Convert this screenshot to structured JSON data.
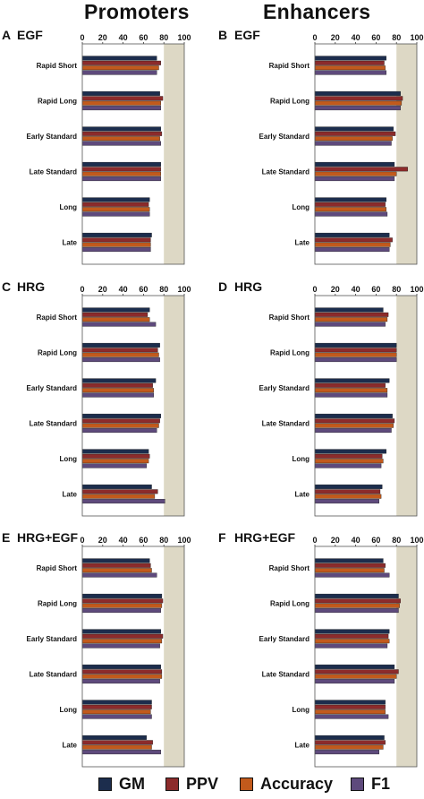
{
  "columns": [
    {
      "title": "Promoters"
    },
    {
      "title": "Enhancers"
    }
  ],
  "colors": {
    "GM": "#1c2d4d",
    "PPV": "#8c2b2b",
    "Accuracy": "#c25a1c",
    "F1": "#5e4a7c",
    "plot_bg_shaded": "#ddd8c5",
    "plot_bg": "#ffffff"
  },
  "legend": [
    {
      "name": "GM"
    },
    {
      "name": "PPV"
    },
    {
      "name": "Accuracy"
    },
    {
      "name": "F1"
    }
  ],
  "chart_data": [
    {
      "panel": "A",
      "title": "EGF",
      "column": "Promoters",
      "type": "bar",
      "orientation": "horizontal",
      "xticks": [
        "0",
        "20",
        "40",
        "60",
        "80",
        "100"
      ],
      "xlim": [
        0,
        100
      ],
      "shaded_range": [
        80,
        100
      ],
      "categories": [
        "Rapid Short",
        "Rapid Long",
        "Early Standard",
        "Late Standard",
        "Long",
        "Late"
      ],
      "series": [
        {
          "name": "GM",
          "values": [
            73,
            76,
            77,
            77,
            66,
            68
          ]
        },
        {
          "name": "PPV",
          "values": [
            77,
            79,
            78,
            77,
            65,
            67
          ]
        },
        {
          "name": "Accuracy",
          "values": [
            75,
            77,
            76,
            77,
            66,
            67
          ]
        },
        {
          "name": "F1",
          "values": [
            73,
            77,
            77,
            77,
            66,
            67
          ]
        }
      ]
    },
    {
      "panel": "B",
      "title": "EGF",
      "column": "Enhancers",
      "type": "bar",
      "orientation": "horizontal",
      "xticks": [
        "0",
        "20",
        "40",
        "60",
        "80",
        "100"
      ],
      "xlim": [
        0,
        100
      ],
      "shaded_range": [
        80,
        100
      ],
      "categories": [
        "Rapid Short",
        "Rapid Long",
        "Early Standard",
        "Late Standard",
        "Long",
        "Late"
      ],
      "series": [
        {
          "name": "GM",
          "values": [
            70,
            84,
            77,
            78,
            70,
            73
          ]
        },
        {
          "name": "PPV",
          "values": [
            68,
            86,
            79,
            91,
            69,
            76
          ]
        },
        {
          "name": "Accuracy",
          "values": [
            69,
            85,
            76,
            80,
            70,
            74
          ]
        },
        {
          "name": "F1",
          "values": [
            70,
            84,
            75,
            78,
            71,
            73
          ]
        }
      ]
    },
    {
      "panel": "C",
      "title": "HRG",
      "column": "Promoters",
      "type": "bar",
      "orientation": "horizontal",
      "xticks": [
        "0",
        "20",
        "40",
        "60",
        "80",
        "100"
      ],
      "xlim": [
        0,
        100
      ],
      "shaded_range": [
        80,
        100
      ],
      "categories": [
        "Rapid Short",
        "Rapid Long",
        "Early Standard",
        "Late Standard",
        "Long",
        "Late"
      ],
      "series": [
        {
          "name": "GM",
          "values": [
            66,
            76,
            72,
            77,
            65,
            68
          ]
        },
        {
          "name": "PPV",
          "values": [
            64,
            74,
            69,
            76,
            66,
            74
          ]
        },
        {
          "name": "Accuracy",
          "values": [
            66,
            75,
            70,
            75,
            65,
            71
          ]
        },
        {
          "name": "F1",
          "values": [
            72,
            76,
            70,
            73,
            63,
            81
          ]
        }
      ]
    },
    {
      "panel": "D",
      "title": "HRG",
      "column": "Enhancers",
      "type": "bar",
      "orientation": "horizontal",
      "xticks": [
        "0",
        "20",
        "40",
        "60",
        "80",
        "100"
      ],
      "xlim": [
        0,
        100
      ],
      "shaded_range": [
        80,
        100
      ],
      "categories": [
        "Rapid Short",
        "Rapid Long",
        "Early Standard",
        "Late Standard",
        "Long",
        "Late"
      ],
      "series": [
        {
          "name": "GM",
          "values": [
            67,
            80,
            73,
            76,
            70,
            66
          ]
        },
        {
          "name": "PPV",
          "values": [
            72,
            80,
            69,
            78,
            66,
            64
          ]
        },
        {
          "name": "Accuracy",
          "values": [
            71,
            80,
            71,
            77,
            67,
            65
          ]
        },
        {
          "name": "F1",
          "values": [
            69,
            80,
            71,
            75,
            65,
            63
          ]
        }
      ]
    },
    {
      "panel": "E",
      "title": "HRG+EGF",
      "column": "Promoters",
      "type": "bar",
      "orientation": "horizontal",
      "xticks": [
        "0",
        "20",
        "40",
        "60",
        "80",
        "100"
      ],
      "xlim": [
        0,
        100
      ],
      "shaded_range": [
        80,
        100
      ],
      "categories": [
        "Rapid Short",
        "Rapid Long",
        "Early Standard",
        "Late Standard",
        "Long",
        "Late"
      ],
      "series": [
        {
          "name": "GM",
          "values": [
            66,
            78,
            77,
            77,
            68,
            63
          ]
        },
        {
          "name": "PPV",
          "values": [
            67,
            79,
            79,
            78,
            68,
            69
          ]
        },
        {
          "name": "Accuracy",
          "values": [
            68,
            78,
            78,
            78,
            67,
            68
          ]
        },
        {
          "name": "F1",
          "values": [
            73,
            77,
            76,
            76,
            68,
            77
          ]
        }
      ]
    },
    {
      "panel": "F",
      "title": "HRG+EGF",
      "column": "Enhancers",
      "type": "bar",
      "orientation": "horizontal",
      "xticks": [
        "0",
        "20",
        "40",
        "60",
        "80",
        "100"
      ],
      "xlim": [
        0,
        100
      ],
      "shaded_range": [
        80,
        100
      ],
      "categories": [
        "Rapid Short",
        "Rapid Long",
        "Early Standard",
        "Late Standard",
        "Long",
        "Late"
      ],
      "series": [
        {
          "name": "GM",
          "values": [
            67,
            82,
            73,
            78,
            69,
            68
          ]
        },
        {
          "name": "PPV",
          "values": [
            69,
            84,
            72,
            82,
            69,
            69
          ]
        },
        {
          "name": "Accuracy",
          "values": [
            68,
            83,
            73,
            80,
            69,
            67
          ]
        },
        {
          "name": "F1",
          "values": [
            73,
            82,
            71,
            78,
            72,
            63
          ]
        }
      ]
    }
  ]
}
